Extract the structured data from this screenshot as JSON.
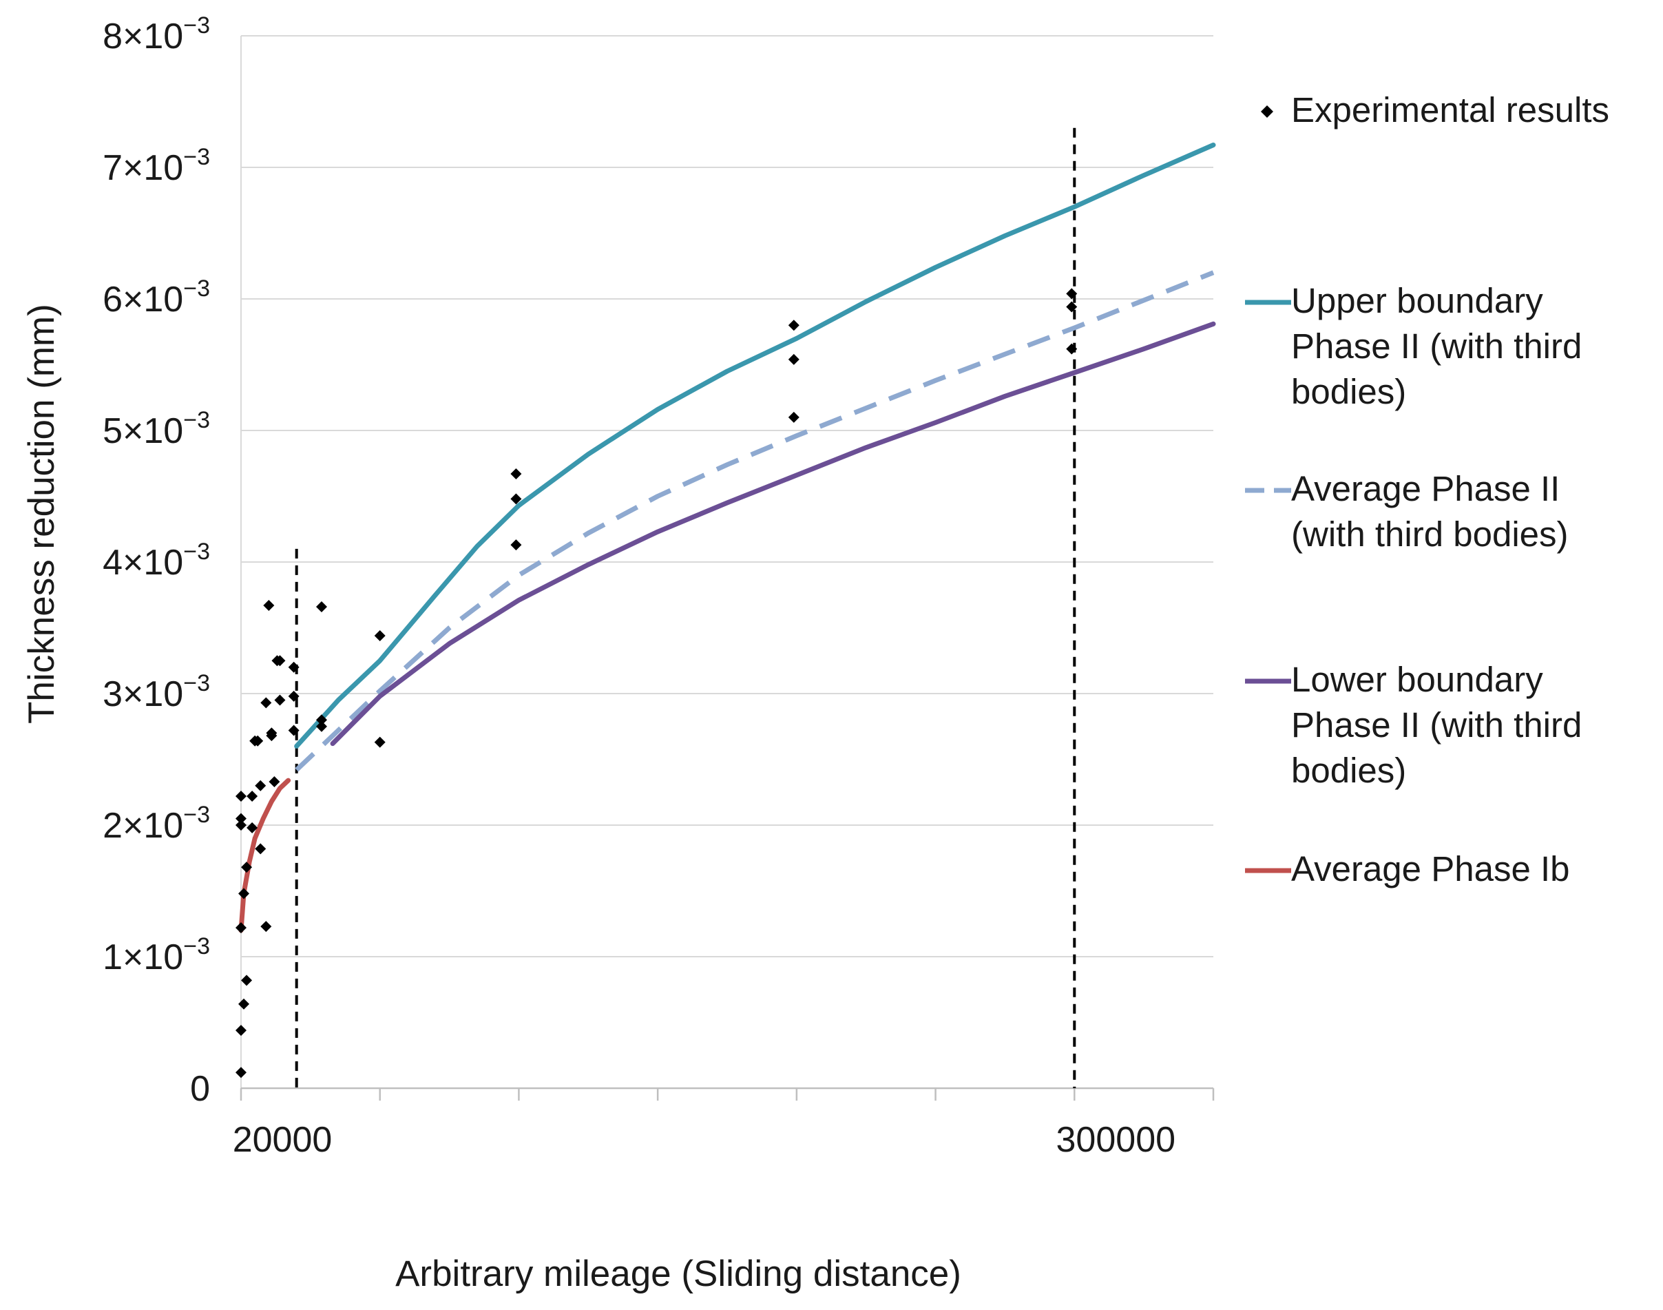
{
  "chart_data": {
    "type": "line",
    "title": "",
    "xlabel": "Arbitrary mileage (Sliding distance)",
    "ylabel": "Thickness reduction (mm)",
    "xlim": [
      0,
      350
    ],
    "ylim": [
      0,
      0.008
    ],
    "x_ticks": [
      0,
      50,
      100,
      150,
      200,
      250,
      300,
      350
    ],
    "x_tick_labels": [
      {
        "x": 0,
        "label": "20000"
      },
      {
        "x": 300,
        "label": "300000"
      }
    ],
    "y_ticks": [
      {
        "value": 0,
        "mantissa": "0",
        "exp": ""
      },
      {
        "value": 0.001,
        "mantissa": "1×10",
        "exp": "−3"
      },
      {
        "value": 0.002,
        "mantissa": "2×10",
        "exp": "−3"
      },
      {
        "value": 0.003,
        "mantissa": "3×10",
        "exp": "−3"
      },
      {
        "value": 0.004,
        "mantissa": "4×10",
        "exp": "−3"
      },
      {
        "value": 0.005,
        "mantissa": "5×10",
        "exp": "−3"
      },
      {
        "value": 0.006,
        "mantissa": "6×10",
        "exp": "−3"
      },
      {
        "value": 0.007,
        "mantissa": "7×10",
        "exp": "−3"
      },
      {
        "value": 0.008,
        "mantissa": "8×10",
        "exp": "−3"
      }
    ],
    "grid": "horizontal",
    "legend_position": "right",
    "vertical_markers": [
      {
        "x": 20,
        "ymax": 0.0041
      },
      {
        "x": 300,
        "ymax": 0.0073
      }
    ],
    "series": [
      {
        "name": "Experimental results",
        "kind": "scatter",
        "color": "#000000",
        "points": [
          [
            0,
            0.00012
          ],
          [
            0,
            0.00044
          ],
          [
            1,
            0.00064
          ],
          [
            2,
            0.00082
          ],
          [
            0,
            0.00122
          ],
          [
            9,
            0.00123
          ],
          [
            1,
            0.00148
          ],
          [
            2,
            0.00168
          ],
          [
            7,
            0.00182
          ],
          [
            4,
            0.00198
          ],
          [
            0,
            0.002
          ],
          [
            0,
            0.00205
          ],
          [
            0,
            0.00222
          ],
          [
            4,
            0.00222
          ],
          [
            7,
            0.0023
          ],
          [
            12,
            0.00233
          ],
          [
            5,
            0.00264
          ],
          [
            6,
            0.00264
          ],
          [
            11,
            0.00268
          ],
          [
            11,
            0.0027
          ],
          [
            9,
            0.00293
          ],
          [
            14,
            0.00295
          ],
          [
            13,
            0.00325
          ],
          [
            14,
            0.00325
          ],
          [
            10,
            0.00367
          ],
          [
            19,
            0.00272
          ],
          [
            19,
            0.00298
          ],
          [
            19,
            0.0032
          ],
          [
            29,
            0.00275
          ],
          [
            29,
            0.0028
          ],
          [
            29,
            0.00366
          ],
          [
            50,
            0.00263
          ],
          [
            50,
            0.00344
          ],
          [
            99,
            0.00413
          ],
          [
            99,
            0.00448
          ],
          [
            99,
            0.00467
          ],
          [
            199,
            0.0051
          ],
          [
            199,
            0.00554
          ],
          [
            199,
            0.0058
          ],
          [
            299,
            0.00562
          ],
          [
            299,
            0.00594
          ],
          [
            299,
            0.00604
          ]
        ]
      },
      {
        "name": "Upper boundary Phase II (with third bodies)",
        "kind": "line",
        "color": "#3a97ad",
        "dash": "solid",
        "points": [
          [
            20,
            0.0026
          ],
          [
            35,
            0.00295
          ],
          [
            50,
            0.00325
          ],
          [
            70,
            0.00375
          ],
          [
            85,
            0.00412
          ],
          [
            100,
            0.00443
          ],
          [
            125,
            0.00482
          ],
          [
            150,
            0.00516
          ],
          [
            175,
            0.00545
          ],
          [
            200,
            0.0057
          ],
          [
            225,
            0.00598
          ],
          [
            250,
            0.00624
          ],
          [
            275,
            0.00648
          ],
          [
            300,
            0.0067
          ],
          [
            325,
            0.00694
          ],
          [
            350,
            0.00717
          ]
        ]
      },
      {
        "name": "Average Phase II (with third bodies)",
        "kind": "line",
        "color": "#8ea9d0",
        "dash": "dashed",
        "points": [
          [
            20,
            0.00242
          ],
          [
            35,
            0.00272
          ],
          [
            50,
            0.00302
          ],
          [
            75,
            0.0035
          ],
          [
            100,
            0.0039
          ],
          [
            125,
            0.00422
          ],
          [
            150,
            0.0045
          ],
          [
            175,
            0.00474
          ],
          [
            200,
            0.00496
          ],
          [
            250,
            0.00538
          ],
          [
            300,
            0.00578
          ],
          [
            350,
            0.0062
          ]
        ]
      },
      {
        "name": "Lower boundary Phase II (with third bodies)",
        "kind": "line",
        "color": "#6b4f95",
        "dash": "solid",
        "points": [
          [
            33,
            0.00262
          ],
          [
            50,
            0.00298
          ],
          [
            75,
            0.00338
          ],
          [
            100,
            0.00371
          ],
          [
            125,
            0.00398
          ],
          [
            150,
            0.00423
          ],
          [
            175,
            0.00445
          ],
          [
            200,
            0.00466
          ],
          [
            225,
            0.00487
          ],
          [
            250,
            0.00506
          ],
          [
            275,
            0.00526
          ],
          [
            300,
            0.00544
          ],
          [
            325,
            0.00562
          ],
          [
            350,
            0.00581
          ]
        ]
      },
      {
        "name": "Average Phase Ib",
        "kind": "line",
        "color": "#c0504d",
        "dash": "solid",
        "points": [
          [
            0,
            0.0012
          ],
          [
            1,
            0.00148
          ],
          [
            3,
            0.00172
          ],
          [
            5,
            0.0019
          ],
          [
            8,
            0.00205
          ],
          [
            11,
            0.00218
          ],
          [
            14,
            0.00228
          ],
          [
            17,
            0.00234
          ]
        ]
      }
    ],
    "legend": [
      {
        "label_lines": [
          "Experimental results"
        ],
        "marker": "diamond",
        "color": "#000000"
      },
      {
        "label_lines": [
          "Upper boundary",
          "Phase II (with third",
          "bodies)"
        ],
        "marker": "line",
        "color": "#3a97ad"
      },
      {
        "label_lines": [
          "Average Phase II",
          "(with third bodies)"
        ],
        "marker": "dash",
        "color": "#8ea9d0"
      },
      {
        "label_lines": [
          "Lower boundary",
          "Phase II (with third",
          "bodies)"
        ],
        "marker": "line",
        "color": "#6b4f95"
      },
      {
        "label_lines": [
          "Average Phase Ib"
        ],
        "marker": "line",
        "color": "#c0504d"
      }
    ]
  }
}
